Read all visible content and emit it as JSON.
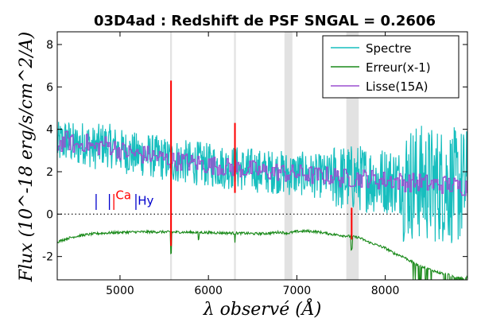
{
  "chart_data": {
    "type": "line",
    "title": "03D4ad : Redshift de PSF SNGAL = 0.2606",
    "xlabel": "λ observé (Å)",
    "ylabel": "Flux (10^-18 erg/s/cm^2/A)",
    "xlim": [
      4290,
      8930
    ],
    "ylim": [
      -3.1,
      8.6
    ],
    "xticks": [
      5000,
      6000,
      7000,
      8000
    ],
    "xtick_labels": [
      "5000",
      "6000",
      "7000",
      "8000"
    ],
    "yticks": [
      -2,
      0,
      2,
      4,
      6,
      8
    ],
    "ytick_labels": [
      "-2",
      "0",
      "2",
      "4",
      "6",
      "8"
    ],
    "zero_line": 0,
    "telluric_bands": [
      [
        5567,
        5587
      ],
      [
        6290,
        6310
      ],
      [
        6860,
        6950
      ],
      [
        7560,
        7700
      ]
    ],
    "legend": {
      "position": "top-right",
      "entries": [
        {
          "label": "Spectre",
          "color": "#17bebe"
        },
        {
          "label": "Erreur(x-1)",
          "color": "#1a8a1a"
        },
        {
          "label": "Lisse(15A)",
          "color": "#9b4fd0"
        }
      ]
    },
    "series": [
      {
        "name": "Spectre",
        "color": "#17bebe",
        "x": [
          4300,
          4400,
          4500,
          4600,
          4700,
          4800,
          4900,
          5000,
          5100,
          5200,
          5300,
          5400,
          5500,
          5600,
          5700,
          5800,
          5900,
          6000,
          6100,
          6200,
          6300,
          6400,
          6500,
          6600,
          6700,
          6800,
          6900,
          7000,
          7100,
          7200,
          7300,
          7400,
          7500,
          7600,
          7700,
          7800,
          7900,
          8000,
          8100,
          8200,
          8300,
          8400,
          8500,
          8600,
          8700,
          8800,
          8900
        ],
        "values": [
          3.3,
          3.5,
          3.2,
          3.4,
          3.1,
          3.3,
          3.2,
          3.0,
          2.9,
          2.8,
          2.8,
          2.7,
          2.6,
          2.5,
          2.5,
          2.4,
          2.4,
          2.3,
          2.3,
          2.2,
          2.2,
          2.1,
          2.1,
          2.0,
          2.0,
          2.0,
          1.9,
          1.9,
          1.9,
          1.8,
          1.8,
          1.8,
          1.7,
          1.7,
          1.7,
          1.7,
          1.6,
          1.6,
          1.6,
          1.5,
          1.5,
          1.5,
          1.4,
          1.4,
          1.4,
          1.3,
          1.3
        ]
      },
      {
        "name": "Erreur(x-1)",
        "color": "#1a8a1a",
        "x": [
          4300,
          4400,
          4500,
          4600,
          4700,
          4800,
          4900,
          5000,
          5100,
          5200,
          5300,
          5400,
          5500,
          5600,
          5700,
          5800,
          5900,
          6000,
          6100,
          6200,
          6300,
          6400,
          6500,
          6600,
          6700,
          6800,
          6900,
          7000,
          7100,
          7200,
          7300,
          7400,
          7500,
          7600,
          7700,
          7800,
          7900,
          8000,
          8100,
          8200,
          8300,
          8400,
          8500,
          8600,
          8700,
          8800,
          8900
        ],
        "values": [
          -1.3,
          -1.15,
          -1.05,
          -0.98,
          -0.93,
          -0.9,
          -0.88,
          -0.86,
          -0.85,
          -0.84,
          -0.84,
          -0.84,
          -0.84,
          -0.85,
          -0.85,
          -0.86,
          -0.86,
          -0.87,
          -0.88,
          -0.89,
          -0.9,
          -0.9,
          -0.92,
          -0.92,
          -0.9,
          -0.85,
          -0.9,
          -0.82,
          -0.8,
          -0.82,
          -0.88,
          -0.95,
          -1.0,
          -1.05,
          -1.1,
          -1.3,
          -1.45,
          -1.6,
          -1.85,
          -2.0,
          -2.25,
          -2.45,
          -2.6,
          -2.75,
          -2.85,
          -2.95,
          -3.0
        ]
      },
      {
        "name": "Lisse(15A)",
        "color": "#9b4fd0",
        "x": [
          4300,
          4400,
          4500,
          4600,
          4700,
          4800,
          4900,
          5000,
          5100,
          5200,
          5300,
          5400,
          5500,
          5600,
          5700,
          5800,
          5900,
          6000,
          6100,
          6200,
          6300,
          6400,
          6500,
          6600,
          6700,
          6800,
          6900,
          7000,
          7100,
          7200,
          7300,
          7400,
          7500,
          7600,
          7700,
          7800,
          7900,
          8000,
          8100,
          8200,
          8300,
          8400,
          8500,
          8600,
          8700,
          8800,
          8900
        ],
        "values": [
          3.3,
          3.5,
          3.2,
          3.4,
          3.1,
          3.3,
          3.2,
          3.0,
          2.9,
          2.8,
          2.8,
          2.7,
          2.6,
          2.5,
          2.5,
          2.4,
          2.4,
          2.3,
          2.3,
          2.2,
          2.2,
          2.1,
          2.1,
          2.0,
          2.0,
          2.0,
          1.9,
          1.9,
          1.9,
          1.8,
          1.8,
          1.8,
          1.7,
          1.7,
          1.7,
          1.7,
          1.6,
          1.6,
          1.6,
          1.5,
          1.5,
          1.5,
          1.4,
          1.4,
          1.4,
          1.3,
          1.3
        ]
      }
    ],
    "sky_lines": [
      {
        "x": 5577,
        "ymin": -1.5,
        "ymax": 6.3,
        "color": "#ff0000"
      },
      {
        "x": 6300,
        "ymin": 1.0,
        "ymax": 4.3,
        "color": "#ff0000"
      },
      {
        "x": 7620,
        "ymin": -1.2,
        "ymax": 0.3,
        "color": "#ff0000"
      }
    ],
    "annotations": [
      {
        "text": "Ca",
        "x": 4950,
        "y": 0.7,
        "color": "#ff0000"
      },
      {
        "text": "Hy",
        "x": 5200,
        "y": 0.45,
        "color": "#0000cc"
      }
    ],
    "line_markers": [
      {
        "x": 4730,
        "color": "#0000cc"
      },
      {
        "x": 4880,
        "color": "#0000cc"
      },
      {
        "x": 4930,
        "color": "#ff0000"
      },
      {
        "x": 5180,
        "color": "#0000cc"
      }
    ]
  }
}
